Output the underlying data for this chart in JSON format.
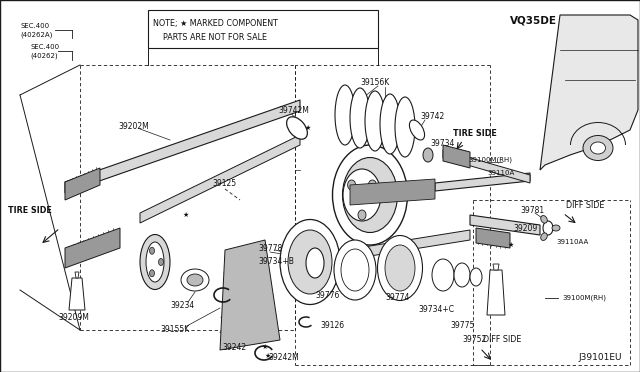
{
  "bg_color": "#f0f0eb",
  "white": "#ffffff",
  "line_color": "#1a1a1a",
  "text_color": "#111111",
  "gray_light": "#d8d8d8",
  "gray_mid": "#bbbbbb",
  "gray_dark": "#999999",
  "figsize": [
    6.4,
    3.72
  ],
  "dpi": 100,
  "note_line1": "NOTE; ★ MARKED COMPONENT",
  "note_line2": "    PARTS ARE NOT FOR SALE",
  "engine_code": "VQ35DE",
  "diagram_id": "J39101EU"
}
